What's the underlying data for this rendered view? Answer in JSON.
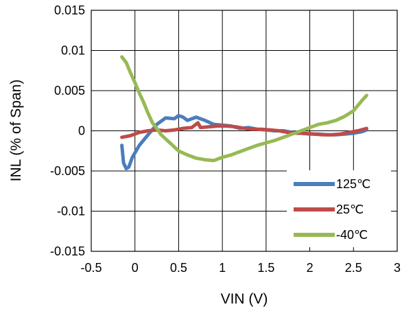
{
  "chart_data": {
    "type": "line",
    "xlabel": "VIN (V)",
    "ylabel": "INL (% of Span)",
    "xlim": [
      -0.5,
      3
    ],
    "ylim": [
      -0.015,
      0.015
    ],
    "x_ticks": [
      "-0.5",
      "0",
      "0.5",
      "1",
      "1.5",
      "2",
      "2.5",
      "3"
    ],
    "y_ticks": [
      "0.015",
      "0.01",
      "0.005",
      "0",
      "-0.005",
      "-0.01",
      "-0.015"
    ],
    "grid": true,
    "legend_position": "bottom-right",
    "series": [
      {
        "name": "125℃",
        "color": "#4a7ebb",
        "points": [
          [
            -0.15,
            -0.0018
          ],
          [
            -0.13,
            -0.004
          ],
          [
            -0.1,
            -0.0047
          ],
          [
            -0.07,
            -0.0045
          ],
          [
            -0.03,
            -0.0033
          ],
          [
            0.05,
            -0.0018
          ],
          [
            0.15,
            -0.0005
          ],
          [
            0.25,
            0.0008
          ],
          [
            0.35,
            0.0016
          ],
          [
            0.45,
            0.0015
          ],
          [
            0.5,
            0.0019
          ],
          [
            0.55,
            0.0017
          ],
          [
            0.6,
            0.0013
          ],
          [
            0.7,
            0.0017
          ],
          [
            0.8,
            0.0013
          ],
          [
            0.9,
            0.0008
          ],
          [
            1.0,
            0.0007
          ],
          [
            1.1,
            0.0006
          ],
          [
            1.2,
            0.0003
          ],
          [
            1.3,
            0.0004
          ],
          [
            1.4,
            0.0002
          ],
          [
            1.5,
            0.0001
          ],
          [
            1.6,
            0.0
          ],
          [
            1.7,
            0.0
          ],
          [
            1.8,
            -0.0002
          ],
          [
            1.9,
            -0.0003
          ],
          [
            2.0,
            -0.0004
          ],
          [
            2.1,
            -0.0004
          ],
          [
            2.2,
            -0.0005
          ],
          [
            2.3,
            -0.0005
          ],
          [
            2.4,
            -0.0004
          ],
          [
            2.5,
            -0.0003
          ],
          [
            2.6,
            -0.0001
          ],
          [
            2.65,
            0.0001
          ]
        ]
      },
      {
        "name": "25℃",
        "color": "#be4b48",
        "points": [
          [
            -0.15,
            -0.0008
          ],
          [
            -0.05,
            -0.0006
          ],
          [
            0.05,
            -0.0002
          ],
          [
            0.15,
            0.0
          ],
          [
            0.25,
            0.0001
          ],
          [
            0.35,
            0.0
          ],
          [
            0.45,
            0.0001
          ],
          [
            0.55,
            0.0003
          ],
          [
            0.65,
            0.0004
          ],
          [
            0.72,
            0.001
          ],
          [
            0.75,
            0.0004
          ],
          [
            0.85,
            0.0005
          ],
          [
            0.95,
            0.0006
          ],
          [
            1.05,
            0.0006
          ],
          [
            1.15,
            0.0005
          ],
          [
            1.25,
            0.0003
          ],
          [
            1.35,
            0.0002
          ],
          [
            1.45,
            0.0002
          ],
          [
            1.55,
            0.0001
          ],
          [
            1.65,
            0.0
          ],
          [
            1.75,
            -0.0002
          ],
          [
            1.85,
            -0.0003
          ],
          [
            1.95,
            -0.0003
          ],
          [
            2.05,
            -0.0004
          ],
          [
            2.15,
            -0.0005
          ],
          [
            2.25,
            -0.0005
          ],
          [
            2.35,
            -0.0004
          ],
          [
            2.45,
            -0.0002
          ],
          [
            2.55,
            0.0
          ],
          [
            2.65,
            0.0003
          ]
        ]
      },
      {
        "name": "-40℃",
        "color": "#98b954",
        "points": [
          [
            -0.15,
            0.0092
          ],
          [
            -0.1,
            0.0085
          ],
          [
            -0.05,
            0.0072
          ],
          [
            0.0,
            0.006
          ],
          [
            0.05,
            0.0047
          ],
          [
            0.1,
            0.0035
          ],
          [
            0.15,
            0.0022
          ],
          [
            0.2,
            0.001
          ],
          [
            0.25,
            0.0003
          ],
          [
            0.3,
            -0.0005
          ],
          [
            0.4,
            -0.0015
          ],
          [
            0.5,
            -0.0025
          ],
          [
            0.6,
            -0.003
          ],
          [
            0.7,
            -0.0034
          ],
          [
            0.8,
            -0.0036
          ],
          [
            0.9,
            -0.0037
          ],
          [
            1.0,
            -0.0033
          ],
          [
            1.1,
            -0.003
          ],
          [
            1.2,
            -0.0026
          ],
          [
            1.3,
            -0.0022
          ],
          [
            1.4,
            -0.0018
          ],
          [
            1.5,
            -0.0015
          ],
          [
            1.6,
            -0.0012
          ],
          [
            1.7,
            -0.0008
          ],
          [
            1.8,
            -0.0004
          ],
          [
            1.9,
            0.0
          ],
          [
            2.0,
            0.0004
          ],
          [
            2.1,
            0.0008
          ],
          [
            2.2,
            0.001
          ],
          [
            2.3,
            0.0013
          ],
          [
            2.4,
            0.0018
          ],
          [
            2.5,
            0.0025
          ],
          [
            2.6,
            0.0038
          ],
          [
            2.65,
            0.0044
          ]
        ]
      }
    ]
  }
}
